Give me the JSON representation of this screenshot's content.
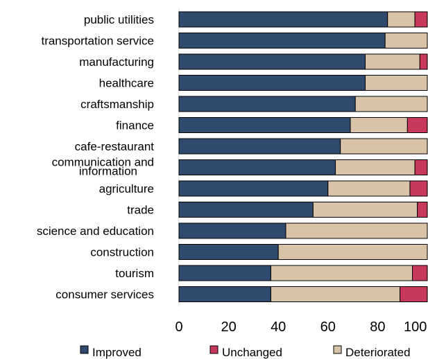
{
  "chart_data": {
    "type": "bar",
    "orientation": "horizontal",
    "stacked": true,
    "categories": [
      "public utilities",
      "transportation service",
      "manufacturing",
      "healthcare",
      "craftsmanship",
      "finance",
      "cafe-restaurant",
      "communication and information",
      "agriculture",
      "trade",
      "science and education",
      "construction",
      "tourism",
      "consumer services"
    ],
    "series": [
      {
        "name": "Improved",
        "color": "#2F4A6D",
        "values": [
          84,
          83,
          75,
          75,
          71,
          69,
          65,
          63,
          60,
          54,
          43,
          40,
          37,
          37
        ]
      },
      {
        "name": "Deteriorated",
        "color": "#D9C3A8",
        "values": [
          11,
          17,
          22,
          25,
          29,
          23,
          35,
          32,
          33,
          42,
          57,
          60,
          57,
          52
        ]
      },
      {
        "name": "Unchanged",
        "color": "#C8385A",
        "values": [
          5,
          0,
          3,
          0,
          0,
          8,
          0,
          5,
          7,
          4,
          0,
          0,
          6,
          11
        ]
      }
    ],
    "xlim": [
      0,
      100
    ],
    "xticks": [
      "0",
      "20",
      "40",
      "60",
      "80",
      "100"
    ],
    "legend": {
      "position": "bottom",
      "items": [
        "Improved",
        "Unchanged",
        "Deteriorated"
      ]
    },
    "grid": false,
    "title": "",
    "xlabel": "",
    "ylabel": ""
  }
}
